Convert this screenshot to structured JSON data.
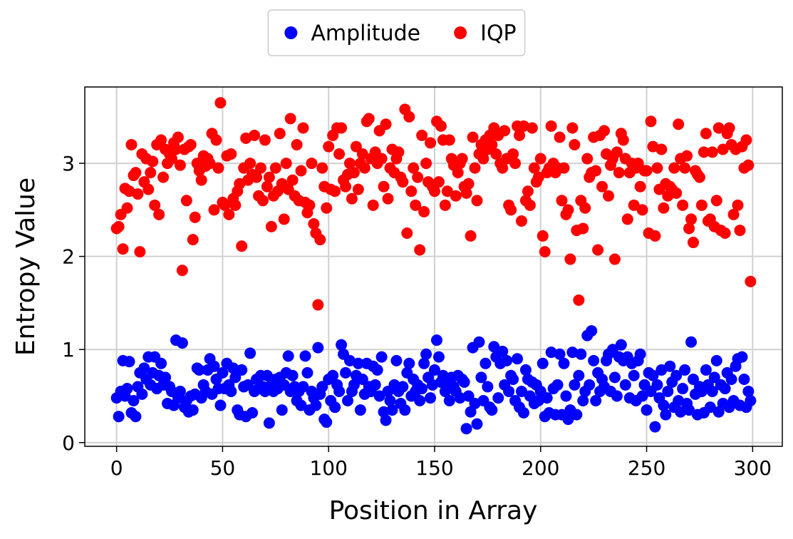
{
  "chart_data": {
    "type": "scatter",
    "x_label": "Position in Array",
    "y_label": "Entropy Value",
    "xlim": [
      -15,
      314
    ],
    "ylim": [
      -0.04,
      3.82
    ],
    "xticks": [
      0,
      50,
      100,
      150,
      200,
      250,
      300
    ],
    "yticks": [
      0,
      1,
      2,
      3
    ],
    "grid": true,
    "legend": "upper center",
    "x": [
      0,
      1,
      2,
      3,
      4,
      5,
      6,
      7,
      8,
      9,
      10,
      11,
      12,
      13,
      14,
      15,
      16,
      17,
      18,
      19,
      20,
      21,
      22,
      23,
      24,
      25,
      26,
      27,
      28,
      29,
      30,
      31,
      32,
      33,
      34,
      35,
      36,
      37,
      38,
      39,
      40,
      41,
      42,
      43,
      44,
      45,
      46,
      47,
      48,
      49,
      50,
      51,
      52,
      53,
      54,
      55,
      56,
      57,
      58,
      59,
      60,
      61,
      62,
      63,
      64,
      65,
      66,
      67,
      68,
      69,
      70,
      71,
      72,
      73,
      74,
      75,
      76,
      77,
      78,
      79,
      80,
      81,
      82,
      83,
      84,
      85,
      86,
      87,
      88,
      89,
      90,
      91,
      92,
      93,
      94,
      95,
      96,
      97,
      98,
      99,
      100,
      101,
      102,
      103,
      104,
      105,
      106,
      107,
      108,
      109,
      110,
      111,
      112,
      113,
      114,
      115,
      116,
      117,
      118,
      119,
      120,
      121,
      122,
      123,
      124,
      125,
      126,
      127,
      128,
      129,
      130,
      131,
      132,
      133,
      134,
      135,
      136,
      137,
      138,
      139,
      140,
      141,
      142,
      143,
      144,
      145,
      146,
      147,
      148,
      149,
      150,
      151,
      152,
      153,
      154,
      155,
      156,
      157,
      158,
      159,
      160,
      161,
      162,
      163,
      164,
      165,
      166,
      167,
      168,
      169,
      170,
      171,
      172,
      173,
      174,
      175,
      176,
      177,
      178,
      179,
      180,
      181,
      182,
      183,
      184,
      185,
      186,
      187,
      188,
      189,
      190,
      191,
      192,
      193,
      194,
      195,
      196,
      197,
      198,
      199,
      200,
      201,
      202,
      203,
      204,
      205,
      206,
      207,
      208,
      209,
      210,
      211,
      212,
      213,
      214,
      215,
      216,
      217,
      218,
      219,
      220,
      221,
      222,
      223,
      224,
      225,
      226,
      227,
      228,
      229,
      230,
      231,
      232,
      233,
      234,
      235,
      236,
      237,
      238,
      239,
      240,
      241,
      242,
      243,
      244,
      245,
      246,
      247,
      248,
      249,
      250,
      251,
      252,
      253,
      254,
      255,
      256,
      257,
      258,
      259,
      260,
      261,
      262,
      263,
      264,
      265,
      266,
      267,
      268,
      269,
      270,
      271,
      272,
      273,
      274,
      275,
      276,
      277,
      278,
      279,
      280,
      281,
      282,
      283,
      284,
      285,
      286,
      287,
      288,
      289,
      290,
      291,
      292,
      293,
      294,
      295,
      296,
      297,
      298,
      299
    ],
    "series": [
      {
        "name": "Amplitude",
        "color": "#0000ff",
        "values": [
          0.48,
          0.28,
          0.55,
          0.88,
          0.5,
          0.58,
          0.87,
          0.32,
          0.45,
          0.28,
          0.6,
          0.75,
          0.52,
          0.8,
          0.68,
          0.92,
          0.62,
          0.75,
          0.92,
          0.58,
          0.72,
          0.85,
          0.62,
          0.7,
          0.42,
          0.6,
          0.55,
          0.4,
          1.1,
          0.48,
          0.55,
          1.07,
          0.38,
          0.45,
          0.33,
          0.5,
          0.35,
          0.52,
          0.8,
          0.78,
          0.48,
          0.62,
          0.55,
          0.78,
          0.9,
          0.52,
          0.82,
          0.68,
          0.58,
          0.4,
          0.75,
          0.58,
          0.85,
          0.62,
          0.55,
          0.8,
          0.7,
          0.35,
          0.3,
          0.78,
          0.6,
          0.28,
          0.62,
          0.96,
          0.32,
          0.55,
          0.68,
          0.58,
          0.72,
          0.6,
          0.55,
          0.72,
          0.21,
          0.62,
          0.55,
          0.68,
          0.58,
          0.7,
          0.35,
          0.62,
          0.75,
          0.93,
          0.55,
          0.72,
          0.6,
          0.45,
          0.55,
          0.4,
          0.6,
          0.93,
          0.75,
          0.35,
          0.55,
          0.48,
          0.4,
          1.02,
          0.52,
          0.6,
          0.25,
          0.22,
          0.68,
          0.45,
          0.72,
          0.38,
          0.62,
          0.55,
          1.05,
          0.95,
          0.75,
          0.45,
          0.88,
          0.55,
          0.62,
          0.72,
          0.85,
          0.35,
          0.68,
          0.52,
          0.85,
          0.6,
          0.55,
          0.82,
          0.62,
          0.78,
          0.5,
          0.92,
          0.33,
          0.24,
          0.55,
          0.45,
          0.35,
          0.62,
          0.88,
          0.55,
          0.42,
          0.6,
          0.35,
          0.75,
          0.85,
          0.5,
          0.68,
          0.55,
          0.62,
          0.45,
          0.58,
          0.85,
          0.95,
          0.7,
          0.48,
          0.62,
          0.78,
          1.1,
          0.92,
          0.65,
          0.72,
          0.55,
          0.62,
          0.45,
          0.7,
          0.6,
          0.55,
          0.72,
          0.48,
          0.68,
          0.65,
          0.15,
          0.5,
          0.33,
          1.02,
          0.42,
          0.2,
          1.08,
          0.7,
          0.45,
          0.85,
          0.6,
          0.38,
          0.35,
          1.03,
          0.92,
          0.48,
          0.85,
          0.98,
          0.62,
          0.88,
          0.55,
          0.72,
          0.68,
          0.45,
          0.9,
          0.38,
          0.55,
          0.32,
          0.78,
          0.68,
          0.5,
          0.65,
          0.42,
          0.62,
          0.45,
          0.55,
          0.85,
          0.28,
          0.48,
          0.32,
          0.97,
          0.58,
          0.3,
          0.62,
          0.95,
          0.3,
          0.85,
          0.5,
          0.25,
          0.35,
          0.97,
          0.62,
          0.3,
          0.72,
          0.95,
          0.45,
          0.55,
          1.15,
          0.62,
          1.2,
          0.88,
          0.45,
          0.75,
          0.55,
          0.68,
          0.6,
          0.88,
          0.95,
          0.55,
          1.0,
          0.7,
          0.5,
          0.92,
          1.05,
          0.88,
          0.62,
          0.92,
          0.48,
          0.85,
          0.72,
          0.45,
          0.88,
          0.95,
          0.5,
          0.62,
          0.35,
          0.75,
          0.55,
          0.72,
          0.17,
          0.62,
          0.48,
          0.78,
          0.4,
          0.3,
          0.55,
          0.82,
          0.65,
          0.38,
          0.72,
          0.45,
          0.33,
          0.58,
          0.78,
          0.42,
          0.35,
          1.08,
          0.68,
          0.52,
          0.3,
          0.6,
          0.55,
          0.32,
          0.78,
          0.62,
          0.38,
          0.55,
          0.7,
          0.88,
          0.33,
          0.62,
          0.42,
          0.58,
          0.75,
          0.38,
          0.68,
          0.45,
          0.82,
          0.9,
          0.4,
          0.92,
          0.68,
          0.38,
          0.55,
          0.45
        ]
      },
      {
        "name": "IQP",
        "color": "#ff0000",
        "values": [
          2.3,
          2.32,
          2.45,
          2.08,
          2.73,
          2.52,
          2.7,
          3.2,
          2.87,
          2.9,
          2.67,
          2.05,
          3.1,
          2.8,
          3.05,
          2.72,
          2.9,
          3.02,
          2.55,
          3.2,
          2.45,
          3.25,
          2.85,
          3.15,
          3.0,
          3.1,
          3.05,
          3.22,
          3.15,
          3.28,
          2.98,
          1.85,
          3.15,
          2.6,
          3.18,
          3.2,
          2.18,
          2.42,
          3.0,
          2.92,
          2.82,
          3.08,
          2.97,
          3.05,
          3.0,
          3.32,
          2.5,
          3.25,
          2.95,
          3.65,
          2.58,
          2.55,
          3.08,
          2.45,
          3.1,
          2.62,
          2.55,
          2.7,
          2.78,
          2.11,
          2.95,
          3.27,
          2.82,
          3.0,
          2.88,
          3.3,
          2.85,
          2.65,
          2.95,
          2.6,
          3.25,
          2.75,
          2.85,
          2.32,
          2.65,
          2.95,
          2.7,
          3.32,
          2.78,
          2.4,
          3.0,
          2.72,
          3.48,
          2.82,
          2.65,
          3.2,
          2.6,
          2.92,
          3.38,
          2.58,
          2.47,
          2.55,
          3.0,
          2.35,
          2.25,
          1.48,
          2.18,
          2.95,
          2.75,
          2.52,
          3.18,
          2.72,
          3.3,
          2.7,
          3.38,
          3.1,
          3.38,
          2.82,
          2.75,
          2.88,
          3.0,
          2.62,
          2.9,
          3.18,
          2.72,
          3.0,
          3.1,
          2.95,
          3.45,
          3.48,
          3.05,
          2.55,
          3.12,
          3.0,
          3.35,
          3.05,
          2.75,
          3.42,
          2.62,
          2.95,
          3.15,
          2.9,
          3.05,
          3.12,
          2.85,
          2.8,
          3.58,
          2.25,
          3.5,
          2.7,
          2.95,
          2.55,
          2.85,
          2.07,
          3.3,
          2.48,
          3.0,
          2.8,
          3.22,
          2.75,
          2.7,
          3.45,
          2.8,
          3.4,
          3.25,
          2.55,
          2.7,
          3.25,
          3.05,
          2.98,
          2.65,
          2.9,
          3.0,
          3.05,
          2.75,
          2.68,
          2.78,
          2.22,
          3.28,
          2.95,
          2.6,
          3.1,
          3.2,
          3.05,
          3.25,
          3.15,
          3.3,
          3.2,
          3.38,
          3.1,
          3.3,
          3.0,
          2.95,
          3.35,
          3.05,
          2.55,
          2.5,
          3.1,
          3.0,
          3.4,
          3.3,
          2.38,
          3.4,
          2.6,
          2.7,
          2.55,
          3.38,
          2.95,
          2.8,
          2.85,
          3.05,
          2.22,
          2.05,
          2.9,
          2.95,
          3.4,
          3.0,
          2.9,
          2.95,
          3.28,
          2.6,
          2.95,
          2.45,
          2.5,
          1.97,
          3.38,
          3.2,
          2.28,
          1.53,
          2.6,
          2.3,
          2.52,
          3.05,
          2.85,
          2.9,
          3.28,
          2.92,
          2.07,
          3.3,
          2.75,
          3.35,
          3.1,
          2.65,
          2.98,
          3.05,
          1.97,
          3.12,
          2.9,
          3.32,
          3.25,
          3.05,
          2.4,
          2.9,
          3.0,
          2.55,
          2.95,
          3.0,
          2.75,
          2.5,
          2.92,
          2.92,
          2.25,
          3.45,
          3.18,
          2.22,
          2.95,
          2.72,
          3.15,
          2.52,
          2.78,
          2.65,
          2.75,
          2.72,
          2.95,
          2.68,
          3.42,
          3.05,
          2.55,
          2.95,
          3.08,
          2.3,
          2.4,
          2.15,
          2.92,
          2.88,
          2.85,
          2.55,
          3.12,
          3.32,
          2.38,
          2.4,
          3.12,
          2.32,
          2.6,
          3.38,
          2.28,
          3.15,
          2.25,
          3.32,
          3.38,
          3.2,
          2.45,
          3.15,
          2.55,
          2.28,
          3.18,
          2.95,
          3.25,
          2.98,
          1.73
        ]
      }
    ]
  }
}
